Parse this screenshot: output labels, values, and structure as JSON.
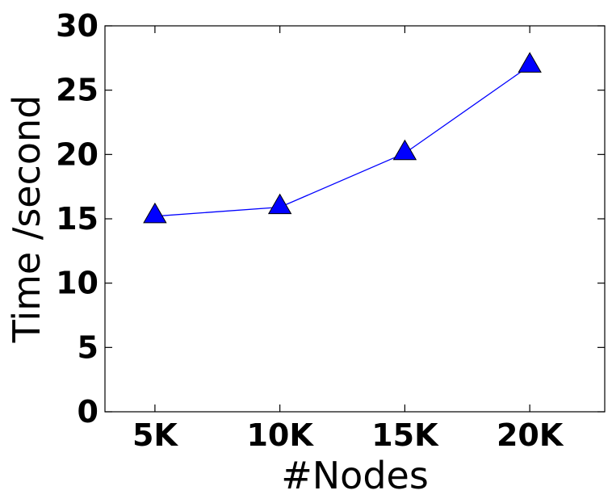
{
  "chart_data": {
    "type": "line",
    "title": "",
    "xlabel": "#Nodes",
    "ylabel": "Time /second",
    "categories": [
      "5K",
      "10K",
      "15K",
      "20K"
    ],
    "x": [
      5000,
      10000,
      15000,
      20000
    ],
    "xlim": [
      3000,
      23000
    ],
    "ylim": [
      0,
      30
    ],
    "yticks": [
      0,
      5,
      10,
      15,
      20,
      25,
      30
    ],
    "grid": false,
    "legend": "none",
    "series": [
      {
        "values": [
          15.2,
          15.9,
          20.1,
          26.9
        ],
        "color": "#0000ff",
        "marker": "triangle-up"
      }
    ]
  }
}
